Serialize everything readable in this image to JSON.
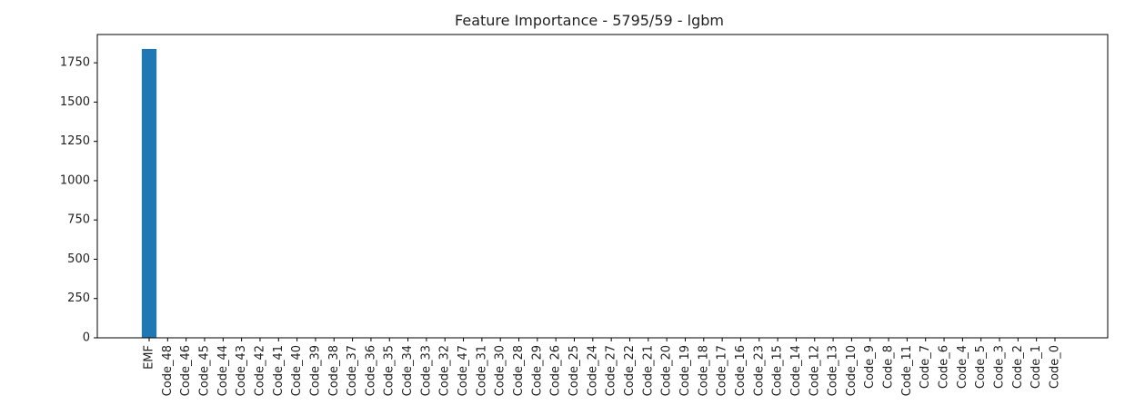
{
  "chart_data": {
    "type": "bar",
    "title": "Feature Importance - 5795/59 - lgbm",
    "xlabel": "",
    "ylabel": "",
    "ylim": [
      0,
      1930
    ],
    "yticks": [
      0,
      250,
      500,
      750,
      1000,
      1250,
      1500,
      1750
    ],
    "bar_color": "#1f77b4",
    "categories": [
      "EMF",
      "Code_48",
      "Code_46",
      "Code_45",
      "Code_44",
      "Code_43",
      "Code_42",
      "Code_41",
      "Code_40",
      "Code_39",
      "Code_38",
      "Code_37",
      "Code_36",
      "Code_35",
      "Code_34",
      "Code_33",
      "Code_32",
      "Code_47",
      "Code_31",
      "Code_30",
      "Code_28",
      "Code_29",
      "Code_26",
      "Code_25",
      "Code_24",
      "Code_27",
      "Code_22",
      "Code_21",
      "Code_20",
      "Code_19",
      "Code_18",
      "Code_17",
      "Code_16",
      "Code_23",
      "Code_15",
      "Code_14",
      "Code_12",
      "Code_13",
      "Code_10",
      "Code_9",
      "Code_8",
      "Code_11",
      "Code_7",
      "Code_6",
      "Code_4",
      "Code_5",
      "Code_3",
      "Code_2",
      "Code_1",
      "Code_0"
    ],
    "values": [
      1838,
      0,
      0,
      0,
      0,
      0,
      0,
      0,
      0,
      0,
      0,
      0,
      0,
      0,
      0,
      0,
      0,
      0,
      0,
      0,
      0,
      0,
      0,
      0,
      0,
      0,
      0,
      0,
      0,
      0,
      0,
      0,
      0,
      0,
      0,
      0,
      0,
      0,
      0,
      0,
      0,
      0,
      0,
      0,
      0,
      0,
      0,
      0,
      0,
      0
    ],
    "grid": false,
    "legend": "none"
  }
}
